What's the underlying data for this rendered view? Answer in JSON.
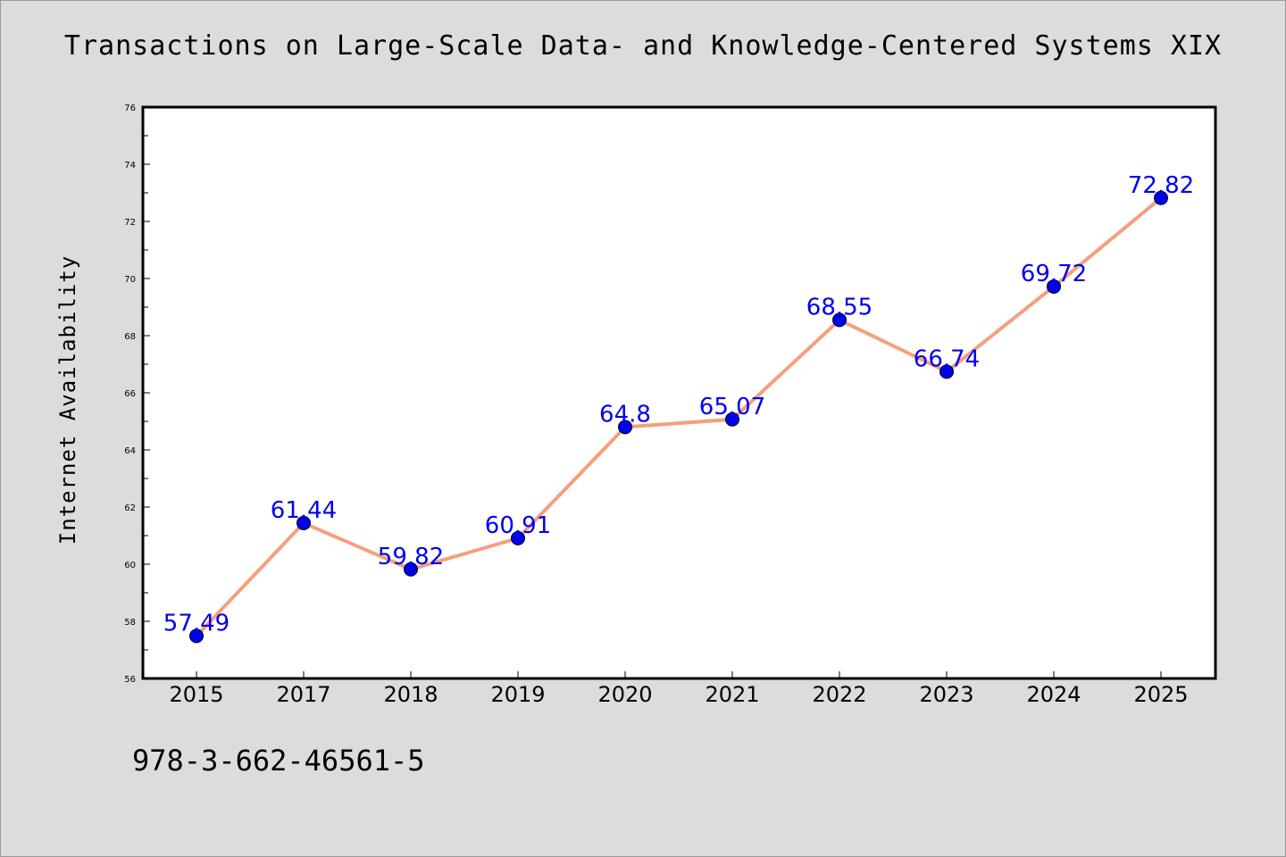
{
  "page": {
    "footer_text": "978-3-662-46561-5"
  },
  "colors": {
    "background": "#dcdcdc",
    "plot_background": "#ffffff",
    "line": "#f4a07c",
    "marker": "#0000ee",
    "data_label": "#0000ee"
  },
  "chart_data": {
    "type": "line",
    "title": "Transactions on Large-Scale Data- and Knowledge-Centered Systems XIX",
    "xlabel": "",
    "ylabel": "Internet Availability",
    "categories": [
      "2015",
      "2017",
      "2018",
      "2019",
      "2020",
      "2021",
      "2022",
      "2023",
      "2024",
      "2025"
    ],
    "series": [
      {
        "values": [
          57.49,
          61.44,
          59.82,
          60.91,
          64.8,
          65.07,
          68.55,
          66.74,
          69.72,
          72.82
        ],
        "labels": [
          "57.49",
          "61.44",
          "59.82",
          "60.91",
          "64.8",
          "65.07",
          "68.55",
          "66.74",
          "69.72",
          "72.82"
        ]
      }
    ],
    "ylim": [
      56,
      76
    ],
    "yticks": [
      "56",
      "58",
      "60",
      "62",
      "64",
      "66",
      "68",
      "70",
      "72",
      "74",
      "76"
    ],
    "grid": false,
    "legend": "none",
    "markers": true,
    "data_labels": true
  }
}
